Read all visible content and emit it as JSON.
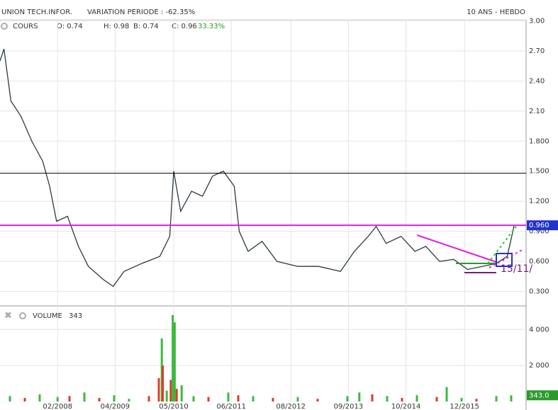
{
  "chart_data": [
    {
      "type": "line",
      "title": "UNION TECH.INFOR.",
      "subtitle": "VARIATION PERIODE : -62.35%",
      "period": "10 ANS - HEBDO",
      "series_name": "COURS",
      "ohlc": [
        "O: 0.74",
        "H: 0.98",
        "B: 0.74",
        "C: 0.96"
      ],
      "change": "33.33%",
      "x": [
        0,
        4,
        11,
        21,
        32,
        43,
        50,
        57,
        68,
        79,
        89,
        104,
        114,
        125,
        143,
        161,
        171,
        175,
        182,
        193,
        204,
        214,
        225,
        236,
        241,
        250,
        264,
        279,
        300,
        321,
        343,
        357,
        371,
        379,
        389,
        404,
        418,
        429,
        443,
        457,
        471,
        486,
        500,
        511,
        518
      ],
      "values": [
        2.6,
        2.72,
        2.2,
        2.05,
        1.8,
        1.6,
        1.35,
        1.0,
        1.05,
        0.75,
        0.55,
        0.42,
        0.35,
        0.5,
        0.58,
        0.65,
        0.85,
        1.5,
        1.1,
        1.3,
        1.25,
        1.45,
        1.5,
        1.35,
        0.9,
        0.7,
        0.8,
        0.6,
        0.55,
        0.55,
        0.5,
        0.7,
        0.85,
        0.95,
        0.78,
        0.85,
        0.7,
        0.75,
        0.6,
        0.62,
        0.52,
        0.55,
        0.58,
        0.65,
        0.96
      ],
      "color": "#2b3a42",
      "hlines": [
        {
          "value": 1.48,
          "color": "#000000"
        },
        {
          "value": 0.96,
          "color": "#e020e0",
          "label": "0.960"
        }
      ],
      "annotation": "15/11/",
      "xlim": [
        0,
        530
      ],
      "xticks": [
        {
          "value": 58,
          "label": "02/2008"
        },
        {
          "value": 116,
          "label": "04/2009"
        },
        {
          "value": 175,
          "label": "05/2010"
        },
        {
          "value": 233,
          "label": "06/2011"
        },
        {
          "value": 293,
          "label": "08/2012"
        },
        {
          "value": 351,
          "label": "09/2013"
        },
        {
          "value": 409,
          "label": "10/2014"
        },
        {
          "value": 468,
          "label": "12/2015"
        }
      ],
      "ylim": [
        0.17,
        3.01
      ],
      "yticks": [
        {
          "value": 3,
          "label": "3.00"
        },
        {
          "value": 2.7,
          "label": "2.70"
        },
        {
          "value": 2.4,
          "label": "2.40"
        },
        {
          "value": 2.1,
          "label": "2.10"
        },
        {
          "value": 1.8,
          "label": "1.800"
        },
        {
          "value": 1.5,
          "label": "1.500"
        },
        {
          "value": 1.2,
          "label": "1.200"
        },
        {
          "value": 0.9,
          "label": "0.900"
        },
        {
          "value": 0.6,
          "label": "0.600"
        },
        {
          "value": 0.3,
          "label": "0.300"
        }
      ],
      "grid": true
    },
    {
      "type": "bar",
      "title": "VOLUME",
      "last_value": 343,
      "last_label": "343.0",
      "x": [
        10,
        25,
        40,
        58,
        70,
        85,
        100,
        115,
        130,
        150,
        160,
        163,
        164,
        168,
        172,
        174,
        176,
        178,
        183,
        195,
        210,
        230,
        240,
        255,
        275,
        300,
        320,
        350,
        362,
        375,
        390,
        405,
        420,
        440,
        450,
        465,
        480,
        500,
        515
      ],
      "values": [
        300,
        200,
        400,
        250,
        300,
        500,
        200,
        350,
        150,
        300,
        1300,
        3500,
        2000,
        600,
        1200,
        4800,
        4400,
        700,
        900,
        300,
        250,
        500,
        350,
        300,
        200,
        250,
        150,
        300,
        500,
        400,
        300,
        200,
        350,
        250,
        800,
        200,
        150,
        300,
        343
      ],
      "colors": [
        "#3db93d",
        "#e03b2b",
        "#3db93d",
        "#3db93d",
        "#e03b2b",
        "#3db93d",
        "#e03b2b",
        "#3db93d",
        "#3db93d",
        "#e03b2b",
        "#e03b2b",
        "#3db93d",
        "#e03b2b",
        "#3db93d",
        "#e03b2b",
        "#3db93d",
        "#3db93d",
        "#e03b2b",
        "#3db93d",
        "#3db93d",
        "#e03b2b",
        "#3db93d",
        "#e03b2b",
        "#3db93d",
        "#e03b2b",
        "#3db93d",
        "#e03b2b",
        "#3db93d",
        "#3db93d",
        "#e03b2b",
        "#3db93d",
        "#e03b2b",
        "#3db93d",
        "#e03b2b",
        "#3db93d",
        "#3db93d",
        "#e03b2b",
        "#3db93d",
        "#3db93d"
      ],
      "ylim": [
        0,
        5150
      ],
      "yticks": [
        {
          "value": 4000,
          "label": "4 000"
        },
        {
          "value": 2000,
          "label": "2 000"
        }
      ],
      "grid": true
    }
  ]
}
